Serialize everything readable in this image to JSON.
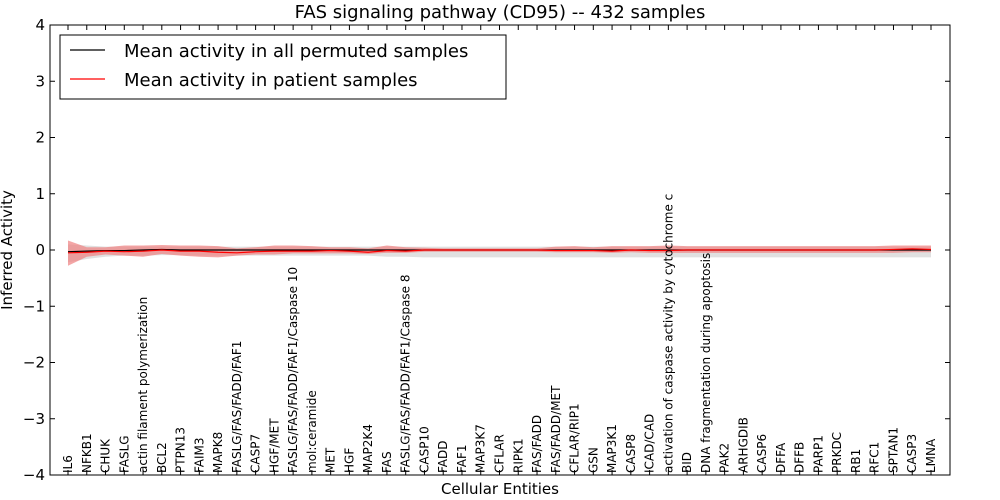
{
  "chart_data": {
    "type": "line",
    "title": "FAS signaling pathway (CD95) -- 432 samples",
    "xlabel": "Cellular Entities",
    "ylabel": "Inferred Activity",
    "ylim": [
      -4,
      4
    ],
    "yticks": [
      -4,
      -3,
      -2,
      -1,
      0,
      1,
      2,
      3,
      4
    ],
    "ytick_labels": [
      "−4",
      "−3",
      "−2",
      "−1",
      "0",
      "1",
      "2",
      "3",
      "4"
    ],
    "grid": false,
    "legend_position": "top-left",
    "categories": [
      "IL6",
      "NFKB1",
      "CHUK",
      "FASLG",
      "actin filament polymerization",
      "BCL2",
      "PTPN13",
      "FAIM3",
      "MAPK8",
      "FASLG/FAS/FADD/FAF1",
      "CASP7",
      "HGF/MET",
      "FASLG/FAS/FADD/FAF1/Caspase 10",
      "mol:ceramide",
      "MET",
      "HGF",
      "MAP2K4",
      "FAS",
      "FASLG/FAS/FADD/FAF1/Caspase 8",
      "CASP10",
      "FADD",
      "FAF1",
      "MAP3K7",
      "CFLAR",
      "RIPK1",
      "FAS/FADD",
      "FAS/FADD/MET",
      "CFLAR/RIP1",
      "GSN",
      "MAP3K1",
      "CASP8",
      "ICAD/CAD",
      "activation of caspase activity by cytochrome c",
      "BID",
      "DNA fragmentation during apoptosis",
      "PAK2",
      "ARHGDIB",
      "CASP6",
      "DFFA",
      "DFFB",
      "PARP1",
      "PRKDC",
      "RB1",
      "RFC1",
      "SPTAN1",
      "CASP3",
      "LMNA"
    ],
    "series": [
      {
        "name": "Mean activity in all permuted samples",
        "color": "#000000",
        "band_color": "#bbbbbb",
        "values": [
          -0.03,
          -0.02,
          -0.01,
          -0.01,
          0.0,
          0.01,
          0.0,
          0.0,
          0.0,
          0.0,
          0.0,
          0.0,
          0.0,
          0.0,
          0.0,
          0.0,
          0.0,
          0.0,
          0.0,
          0.0,
          0.0,
          0.0,
          0.0,
          0.0,
          0.0,
          0.0,
          0.0,
          0.0,
          0.0,
          0.0,
          0.0,
          0.0,
          0.0,
          0.0,
          0.0,
          0.0,
          0.0,
          0.0,
          0.0,
          0.0,
          0.0,
          0.0,
          0.0,
          0.0,
          0.0,
          0.0,
          0.0
        ],
        "lower": [
          -0.22,
          -0.16,
          -0.12,
          -0.1,
          -0.1,
          -0.09,
          -0.09,
          -0.1,
          -0.1,
          -0.1,
          -0.1,
          -0.1,
          -0.1,
          -0.1,
          -0.1,
          -0.1,
          -0.1,
          -0.12,
          -0.12,
          -0.13,
          -0.13,
          -0.13,
          -0.13,
          -0.13,
          -0.13,
          -0.13,
          -0.13,
          -0.13,
          -0.13,
          -0.13,
          -0.13,
          -0.13,
          -0.13,
          -0.13,
          -0.13,
          -0.13,
          -0.13,
          -0.13,
          -0.13,
          -0.13,
          -0.13,
          -0.13,
          -0.13,
          -0.13,
          -0.13,
          -0.13,
          -0.13
        ],
        "upper": [
          0.1,
          0.08,
          0.06,
          0.06,
          0.06,
          0.06,
          0.06,
          0.06,
          0.06,
          0.06,
          0.06,
          0.06,
          0.06,
          0.06,
          0.06,
          0.06,
          0.06,
          0.06,
          0.06,
          0.06,
          0.06,
          0.06,
          0.06,
          0.06,
          0.06,
          0.06,
          0.06,
          0.06,
          0.06,
          0.06,
          0.06,
          0.06,
          0.06,
          0.06,
          0.06,
          0.06,
          0.06,
          0.06,
          0.06,
          0.06,
          0.06,
          0.06,
          0.06,
          0.06,
          0.06,
          0.06,
          0.06
        ]
      },
      {
        "name": "Mean activity in patient samples",
        "color": "#ff0000",
        "band_color": "#f08080",
        "values": [
          -0.05,
          -0.04,
          -0.02,
          -0.03,
          -0.02,
          0.0,
          -0.02,
          -0.02,
          -0.04,
          -0.05,
          -0.03,
          -0.02,
          -0.02,
          -0.02,
          -0.01,
          -0.02,
          -0.04,
          -0.01,
          -0.02,
          0.0,
          0.0,
          0.0,
          0.0,
          0.0,
          0.0,
          0.0,
          -0.01,
          -0.01,
          -0.01,
          -0.02,
          0.0,
          -0.01,
          -0.01,
          0.0,
          0.0,
          0.0,
          0.0,
          0.0,
          0.0,
          0.0,
          0.0,
          0.0,
          0.0,
          0.0,
          0.01,
          0.02,
          0.01
        ],
        "lower": [
          -0.28,
          -0.12,
          -0.08,
          -0.1,
          -0.12,
          -0.07,
          -0.1,
          -0.12,
          -0.13,
          -0.1,
          -0.08,
          -0.08,
          -0.06,
          -0.06,
          -0.06,
          -0.06,
          -0.07,
          -0.05,
          -0.05,
          -0.03,
          -0.03,
          -0.03,
          -0.03,
          -0.03,
          -0.03,
          -0.03,
          -0.04,
          -0.04,
          -0.04,
          -0.05,
          -0.04,
          -0.05,
          -0.05,
          -0.05,
          -0.05,
          -0.05,
          -0.05,
          -0.05,
          -0.05,
          -0.05,
          -0.05,
          -0.05,
          -0.05,
          -0.05,
          -0.05,
          -0.04,
          -0.04
        ],
        "upper": [
          0.17,
          0.05,
          0.05,
          0.08,
          0.08,
          0.09,
          0.08,
          0.08,
          0.07,
          0.03,
          0.05,
          0.08,
          0.08,
          0.07,
          0.05,
          0.05,
          0.03,
          0.08,
          0.05,
          0.04,
          0.03,
          0.03,
          0.03,
          0.03,
          0.03,
          0.03,
          0.06,
          0.07,
          0.05,
          0.07,
          0.07,
          0.07,
          0.08,
          0.07,
          0.07,
          0.07,
          0.07,
          0.07,
          0.07,
          0.07,
          0.07,
          0.07,
          0.07,
          0.07,
          0.08,
          0.08,
          0.08
        ]
      }
    ]
  }
}
